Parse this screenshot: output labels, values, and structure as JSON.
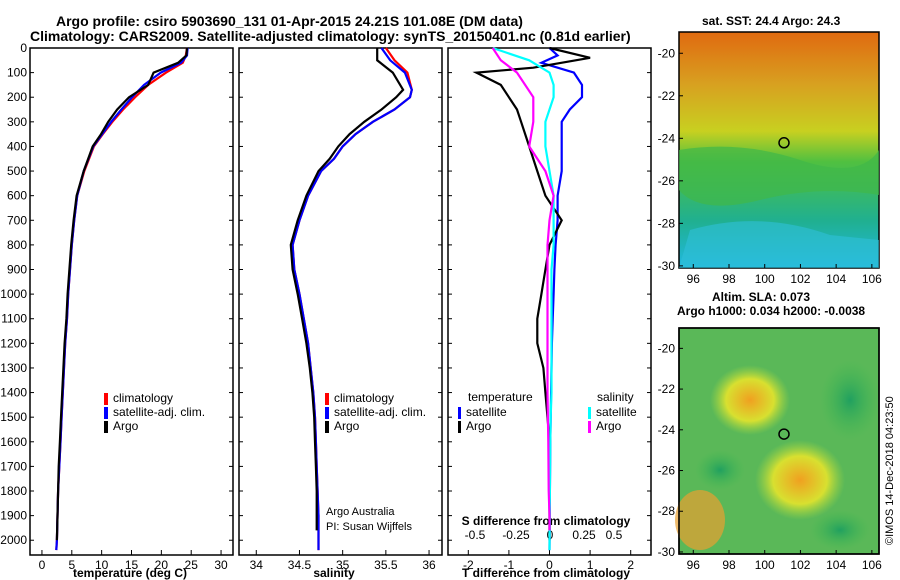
{
  "header": {
    "title_line1": "Argo profile: csiro 5903690_131 01-Apr-2015 24.21S 101.08E (DM data)",
    "title_line2": "Climatology: CARS2009. Satellite-adjusted climatology: synTS_20150401.nc (0.81d earlier)"
  },
  "legend_temp": [
    "climatology",
    "satellite-adj. clim.",
    "Argo"
  ],
  "legend_sal": [
    "climatology",
    "satellite-adj. clim.",
    "Argo"
  ],
  "legend_diff": {
    "temp_header": "temperature",
    "sal_header": "salinity",
    "temp_items": [
      "satellite",
      "Argo"
    ],
    "sal_items": [
      "satellite",
      "Argo"
    ]
  },
  "credits": {
    "line1": "Argo Australia",
    "line2": "PI: Susan Wijffels",
    "side": "©IMOS 14-Dec-2018 04:23:50"
  },
  "maps": {
    "sst_title": "sat. SST: 24.4 Argo: 24.3",
    "sla_title1": "Altim. SLA: 0.073",
    "sla_title2": "Argo h1000: 0.034 h2000: -0.0038"
  },
  "colors": {
    "climatology": "#ff0000",
    "satellite": "#0000ff",
    "argo": "#000000",
    "sal_satellite": "#00ffff",
    "sal_argo": "#ff00ff"
  },
  "chart_data": [
    {
      "type": "line",
      "title": "",
      "xlabel": "temperature (deg C)",
      "ylabel": "",
      "xlim": [
        -2,
        32
      ],
      "ylim": [
        2060,
        0
      ],
      "xticks": [
        "0",
        "5",
        "10",
        "15",
        "20",
        "25",
        "30"
      ],
      "xtick_values": [
        0,
        5,
        10,
        15,
        20,
        25,
        30
      ],
      "yticks": [
        "0",
        "100",
        "200",
        "300",
        "400",
        "500",
        "600",
        "700",
        "800",
        "900",
        "1000",
        "1100",
        "1200",
        "1300",
        "1400",
        "1500",
        "1600",
        "1700",
        "1800",
        "1900",
        "2000"
      ],
      "ytick_values": [
        0,
        100,
        200,
        300,
        400,
        500,
        600,
        700,
        800,
        900,
        1000,
        1100,
        1200,
        1300,
        1400,
        1500,
        1600,
        1700,
        1800,
        1900,
        2000
      ],
      "series": [
        {
          "name": "climatology",
          "color": "#ff0000",
          "x": [
            24.3,
            24.1,
            23.6,
            20.8,
            17.8,
            15.6,
            13.6,
            11.8,
            10.2,
            8.7,
            7.1,
            5.9,
            5.4,
            5.0,
            4.7,
            4.4,
            4.2,
            3.9,
            3.7,
            3.5,
            3.3,
            3.1,
            2.9,
            2.7,
            2.6,
            2.5,
            2.4
          ],
          "y": [
            0,
            30,
            60,
            100,
            150,
            200,
            250,
            300,
            350,
            400,
            500,
            600,
            700,
            800,
            900,
            1000,
            1100,
            1200,
            1300,
            1400,
            1500,
            1600,
            1700,
            1800,
            1900,
            2000,
            2040
          ]
        },
        {
          "name": "satellite-adj. clim.",
          "color": "#0000ff",
          "x": [
            24.4,
            24.3,
            23.3,
            19.9,
            17.1,
            15.1,
            13.3,
            11.6,
            10.1,
            8.6,
            7.0,
            5.9,
            5.4,
            5.0,
            4.7,
            4.4,
            4.2,
            3.9,
            3.7,
            3.5,
            3.3,
            3.1,
            2.9,
            2.7,
            2.6,
            2.5,
            2.4
          ],
          "y": [
            0,
            30,
            60,
            100,
            150,
            200,
            250,
            300,
            350,
            400,
            500,
            600,
            700,
            800,
            900,
            1000,
            1100,
            1200,
            1300,
            1400,
            1500,
            1600,
            1700,
            1800,
            1900,
            2000,
            2040
          ]
        },
        {
          "name": "Argo",
          "color": "#000000",
          "x": [
            24.3,
            24.2,
            22.8,
            18.7,
            17.8,
            14.6,
            12.6,
            11.1,
            9.9,
            8.5,
            7.0,
            5.8,
            5.3,
            4.9,
            4.6,
            4.3,
            4.1,
            3.8,
            3.6,
            3.4,
            3.2,
            3.0,
            2.8,
            2.7,
            2.6,
            2.5
          ],
          "y": [
            0,
            30,
            60,
            100,
            150,
            200,
            250,
            300,
            350,
            400,
            500,
            600,
            700,
            800,
            900,
            1000,
            1100,
            1200,
            1300,
            1400,
            1500,
            1600,
            1700,
            1800,
            1900,
            2000
          ]
        }
      ]
    },
    {
      "type": "line",
      "title": "",
      "xlabel": "salinity",
      "ylabel": "",
      "xlim": [
        33.8,
        36.15
      ],
      "ylim": [
        2060,
        0
      ],
      "xticks": [
        "34",
        "34.5",
        "35",
        "35.5",
        "36"
      ],
      "xtick_values": [
        34,
        34.5,
        35,
        35.5,
        36
      ],
      "series": [
        {
          "name": "climatology",
          "color": "#ff0000",
          "x": [
            35.5,
            35.6,
            35.75,
            35.8,
            35.78,
            35.6,
            35.35,
            35.15,
            35.0,
            34.9,
            34.75,
            34.6,
            34.5,
            34.42,
            34.44,
            34.5,
            34.55,
            34.6,
            34.63,
            34.66,
            34.68,
            34.69,
            34.7,
            34.71,
            34.72,
            34.72
          ],
          "y": [
            0,
            50,
            100,
            170,
            200,
            250,
            300,
            350,
            400,
            450,
            500,
            600,
            700,
            800,
            900,
            1000,
            1100,
            1200,
            1300,
            1400,
            1500,
            1600,
            1700,
            1800,
            1900,
            2040
          ]
        },
        {
          "name": "satellite-adj. clim.",
          "color": "#0000ff",
          "x": [
            35.45,
            35.55,
            35.72,
            35.8,
            35.78,
            35.6,
            35.35,
            35.15,
            35.0,
            34.9,
            34.75,
            34.6,
            34.5,
            34.42,
            34.44,
            34.5,
            34.55,
            34.6,
            34.63,
            34.66,
            34.68,
            34.69,
            34.7,
            34.71,
            34.72,
            34.72
          ],
          "y": [
            0,
            50,
            100,
            170,
            200,
            250,
            300,
            350,
            400,
            450,
            500,
            600,
            700,
            800,
            900,
            1000,
            1100,
            1200,
            1300,
            1400,
            1500,
            1600,
            1700,
            1800,
            1900,
            2040
          ]
        },
        {
          "name": "Argo",
          "color": "#000000",
          "x": [
            35.4,
            35.4,
            35.58,
            35.7,
            35.62,
            35.45,
            35.25,
            35.08,
            34.95,
            34.85,
            34.72,
            34.58,
            34.48,
            34.4,
            34.42,
            34.48,
            34.53,
            34.58,
            34.62,
            34.65,
            34.67,
            34.68,
            34.69,
            34.7,
            34.7
          ],
          "y": [
            0,
            50,
            100,
            170,
            200,
            250,
            300,
            350,
            400,
            450,
            500,
            600,
            700,
            800,
            900,
            1000,
            1100,
            1200,
            1300,
            1400,
            1500,
            1600,
            1700,
            1800,
            1960
          ]
        }
      ]
    },
    {
      "type": "line",
      "title": "",
      "xlabel": "T difference from climatology",
      "xlabel2": "S difference from climatology",
      "ylabel": "",
      "xlim": [
        -2.5,
        2.5
      ],
      "ylim": [
        2060,
        0
      ],
      "xticks": [
        "-2",
        "-1",
        "0",
        "1",
        "2"
      ],
      "xtick_values": [
        -2,
        -1,
        0,
        1,
        2
      ],
      "sticks": [
        "-0.5",
        "-0.25",
        "0",
        "0.25",
        "0.5"
      ],
      "stick_positions": [
        -2,
        -1,
        0,
        1,
        2
      ],
      "series": [
        {
          "name": "temperature satellite",
          "color": "#0000ff",
          "x": [
            0,
            0.2,
            -0.2,
            0.6,
            0.8,
            0.8,
            0.5,
            0.3,
            0.3,
            0.3,
            0.2,
            0.2,
            0.15,
            0.12,
            0.1,
            0.08,
            0.06,
            0.05,
            0.04,
            0.03,
            0.02,
            0.01,
            0.0
          ],
          "y": [
            0,
            30,
            60,
            100,
            150,
            200,
            250,
            300,
            400,
            500,
            600,
            700,
            800,
            900,
            1000,
            1100,
            1200,
            1300,
            1400,
            1500,
            1600,
            1800,
            2040
          ]
        },
        {
          "name": "temperature Argo",
          "color": "#000000",
          "x": [
            0,
            1.0,
            -0.4,
            -1.8,
            -1.2,
            -1.0,
            -0.8,
            -0.7,
            -0.5,
            -0.3,
            -0.1,
            0.3,
            0.0,
            -0.1,
            -0.2,
            -0.3,
            -0.3,
            -0.15,
            -0.1,
            -0.05,
            0.0,
            0.0,
            0.0
          ],
          "y": [
            0,
            40,
            80,
            100,
            150,
            200,
            250,
            300,
            400,
            500,
            600,
            700,
            800,
            900,
            1000,
            1100,
            1200,
            1300,
            1400,
            1500,
            1600,
            1800,
            2000
          ]
        },
        {
          "name": "salinity satellite",
          "color": "#00ffff",
          "x": [
            -1.4,
            -0.5,
            0.0,
            0.1,
            0.1,
            0.0,
            -0.1,
            -0.1,
            0.0,
            0.1,
            0.1,
            0.1,
            0.05,
            0.05,
            0.05,
            0.05,
            0.05,
            0.05,
            0.03,
            0.02,
            0.01,
            0.0
          ],
          "y": [
            0,
            50,
            100,
            150,
            200,
            250,
            300,
            400,
            500,
            600,
            700,
            800,
            900,
            1000,
            1100,
            1200,
            1300,
            1400,
            1500,
            1600,
            1800,
            2040
          ]
        },
        {
          "name": "salinity Argo",
          "color": "#ff00ff",
          "x": [
            -1.4,
            -1.2,
            -0.8,
            -0.4,
            -0.4,
            -0.5,
            -0.1,
            0.1,
            0.0,
            -0.05,
            -0.05,
            -0.05,
            -0.05,
            -0.03,
            -0.02,
            0.0,
            0.0
          ],
          "y": [
            0,
            50,
            100,
            200,
            300,
            400,
            500,
            600,
            700,
            800,
            1000,
            1200,
            1400,
            1600,
            1800,
            1900,
            1960
          ]
        }
      ]
    }
  ],
  "map_axes": {
    "lon_ticks": [
      "96",
      "98",
      "100",
      "102",
      "104",
      "106"
    ],
    "lon_values": [
      96,
      98,
      100,
      102,
      104,
      106
    ],
    "sst_lat_ticks": [
      "-20",
      "-22",
      "-24",
      "-26",
      "-28",
      "-30"
    ],
    "sst_lat_values": [
      -20,
      -22,
      -24,
      -26,
      -28,
      -30
    ],
    "sla_lat_ticks": [
      "-20",
      "-22",
      "-24",
      "-26",
      "-28",
      "-30"
    ],
    "sla_lat_values": [
      -20,
      -22,
      -24,
      -26,
      -28,
      -30
    ],
    "float_lon": 101.08,
    "float_lat": -24.21
  }
}
